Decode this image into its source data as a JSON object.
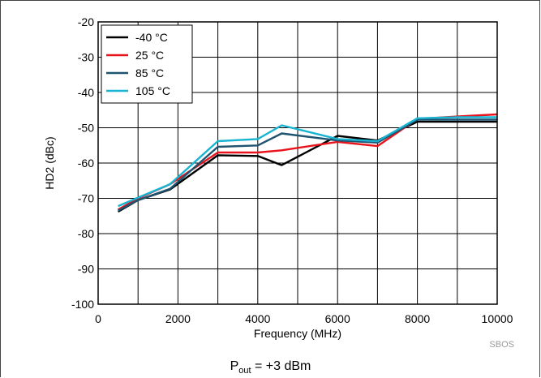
{
  "chart_data": {
    "type": "line",
    "xlabel": "Frequency (MHz)",
    "ylabel": "HD2 (dBc)",
    "xlim": [
      0,
      10000
    ],
    "ylim": [
      -100,
      -20
    ],
    "xticks": [
      0,
      2000,
      4000,
      6000,
      8000,
      10000
    ],
    "yticks": [
      -100,
      -90,
      -80,
      -70,
      -60,
      -50,
      -40,
      -30,
      -20
    ],
    "minor_x_step": 1000,
    "grid": true,
    "legend_position": "top-left",
    "series": [
      {
        "name": "-40 °C",
        "color": "#000000",
        "x": [
          500,
          1000,
          1800,
          3000,
          4000,
          4600,
          6000,
          7000,
          8000,
          9000,
          10000
        ],
        "y": [
          -73.8,
          -70.5,
          -67.5,
          -57.8,
          -58.0,
          -60.6,
          -52.3,
          -53.6,
          -48.3,
          -48.3,
          -48.3
        ]
      },
      {
        "name": "25 °C",
        "color": "#e8131b",
        "x": [
          500,
          1000,
          1800,
          3000,
          4000,
          4600,
          6000,
          7000,
          8000,
          9000,
          10000
        ],
        "y": [
          -73.2,
          -70.0,
          -66.0,
          -57.0,
          -57.0,
          -56.4,
          -54.0,
          -55.2,
          -47.5,
          -46.8,
          -46.2
        ]
      },
      {
        "name": "85 °C",
        "color": "#1f5470",
        "x": [
          500,
          1000,
          1800,
          3000,
          4000,
          4600,
          6000,
          7000,
          8000,
          9000,
          10000
        ],
        "y": [
          -73.5,
          -70.5,
          -67.3,
          -55.4,
          -55.0,
          -51.6,
          -53.6,
          -54.2,
          -47.7,
          -47.7,
          -47.7
        ]
      },
      {
        "name": "105 °C",
        "color": "#19b4d2",
        "x": [
          500,
          1000,
          1800,
          3000,
          4000,
          4600,
          6000,
          7000,
          8000,
          9000,
          10000
        ],
        "y": [
          -72.2,
          -69.8,
          -66.0,
          -53.8,
          -53.2,
          -49.3,
          -53.2,
          -53.8,
          -47.3,
          -47.0,
          -47.0
        ]
      }
    ],
    "watermark": "SBOS"
  },
  "caption": {
    "main": "P",
    "sub": "out",
    "rest": " = +3 dBm"
  }
}
